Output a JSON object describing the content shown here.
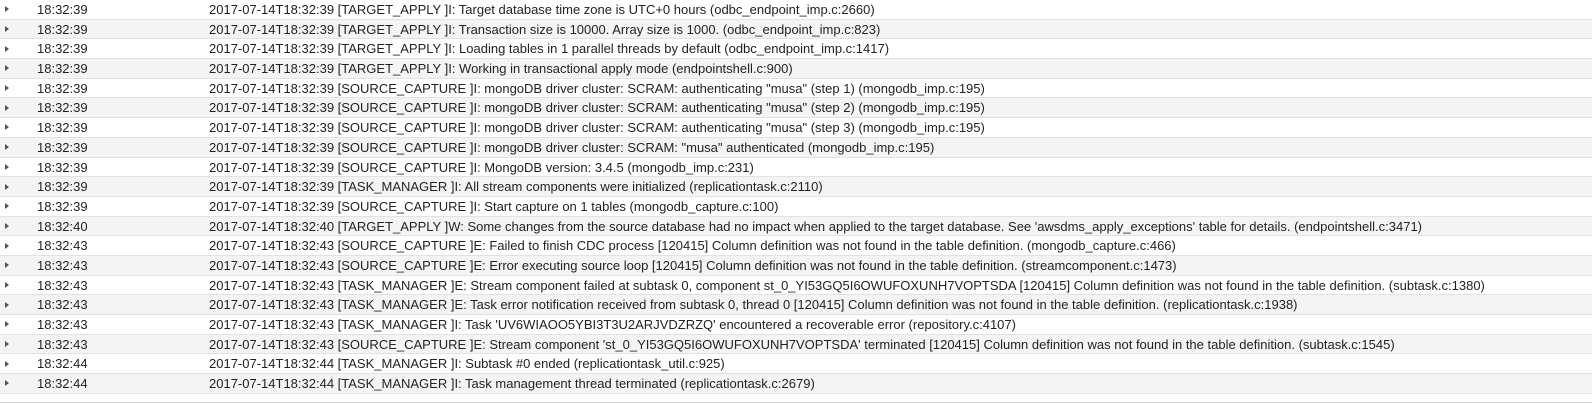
{
  "log": {
    "rows": [
      {
        "time": "18:32:39",
        "message": "2017-07-14T18:32:39 [TARGET_APPLY ]I: Target database time zone is UTC+0 hours (odbc_endpoint_imp.c:2660)"
      },
      {
        "time": "18:32:39",
        "message": "2017-07-14T18:32:39 [TARGET_APPLY ]I: Transaction size is 10000. Array size is 1000. (odbc_endpoint_imp.c:823)"
      },
      {
        "time": "18:32:39",
        "message": "2017-07-14T18:32:39 [TARGET_APPLY ]I: Loading tables in 1 parallel threads by default (odbc_endpoint_imp.c:1417)"
      },
      {
        "time": "18:32:39",
        "message": "2017-07-14T18:32:39 [TARGET_APPLY ]I: Working in transactional apply mode (endpointshell.c:900)"
      },
      {
        "time": "18:32:39",
        "message": "2017-07-14T18:32:39 [SOURCE_CAPTURE ]I: mongoDB driver cluster: SCRAM: authenticating \"musa\" (step 1) (mongodb_imp.c:195)"
      },
      {
        "time": "18:32:39",
        "message": "2017-07-14T18:32:39 [SOURCE_CAPTURE ]I: mongoDB driver cluster: SCRAM: authenticating \"musa\" (step 2) (mongodb_imp.c:195)"
      },
      {
        "time": "18:32:39",
        "message": "2017-07-14T18:32:39 [SOURCE_CAPTURE ]I: mongoDB driver cluster: SCRAM: authenticating \"musa\" (step 3) (mongodb_imp.c:195)"
      },
      {
        "time": "18:32:39",
        "message": "2017-07-14T18:32:39 [SOURCE_CAPTURE ]I: mongoDB driver cluster: SCRAM: \"musa\" authenticated (mongodb_imp.c:195)"
      },
      {
        "time": "18:32:39",
        "message": "2017-07-14T18:32:39 [SOURCE_CAPTURE ]I: MongoDB version: 3.4.5 (mongodb_imp.c:231)"
      },
      {
        "time": "18:32:39",
        "message": "2017-07-14T18:32:39 [TASK_MANAGER ]I: All stream components were initialized (replicationtask.c:2110)"
      },
      {
        "time": "18:32:39",
        "message": "2017-07-14T18:32:39 [SOURCE_CAPTURE ]I: Start capture on 1 tables (mongodb_capture.c:100)"
      },
      {
        "time": "18:32:40",
        "message": "2017-07-14T18:32:40 [TARGET_APPLY ]W: Some changes from the source database had no impact when applied to the target database. See 'awsdms_apply_exceptions' table for details. (endpointshell.c:3471)"
      },
      {
        "time": "18:32:43",
        "message": "2017-07-14T18:32:43 [SOURCE_CAPTURE ]E: Failed to finish CDC process [120415] Column definition was not found in the table definition. (mongodb_capture.c:466)"
      },
      {
        "time": "18:32:43",
        "message": "2017-07-14T18:32:43 [SOURCE_CAPTURE ]E: Error executing source loop [120415] Column definition was not found in the table definition. (streamcomponent.c:1473)"
      },
      {
        "time": "18:32:43",
        "message": "2017-07-14T18:32:43 [TASK_MANAGER ]E: Stream component failed at subtask 0, component st_0_YI53GQ5I6OWUFOXUNH7VOPTSDA [120415] Column definition was not found in the table definition. (subtask.c:1380)"
      },
      {
        "time": "18:32:43",
        "message": "2017-07-14T18:32:43 [TASK_MANAGER ]E: Task error notification received from subtask 0, thread 0 [120415] Column definition was not found in the table definition. (replicationtask.c:1938)"
      },
      {
        "time": "18:32:43",
        "message": "2017-07-14T18:32:43 [TASK_MANAGER ]I: Task 'UV6WIAOO5YBI3T3U2ARJVDZRZQ' encountered a recoverable error (repository.c:4107)"
      },
      {
        "time": "18:32:43",
        "message": "2017-07-14T18:32:43 [SOURCE_CAPTURE ]E: Stream component 'st_0_YI53GQ5I6OWUFOXUNH7VOPTSDA' terminated [120415] Column definition was not found in the table definition. (subtask.c:1545)"
      },
      {
        "time": "18:32:44",
        "message": "2017-07-14T18:32:44 [TASK_MANAGER ]I: Subtask #0 ended (replicationtask_util.c:925)"
      },
      {
        "time": "18:32:44",
        "message": "2017-07-14T18:32:44 [TASK_MANAGER ]I: Task management thread terminated (replicationtask.c:2679)"
      }
    ]
  }
}
